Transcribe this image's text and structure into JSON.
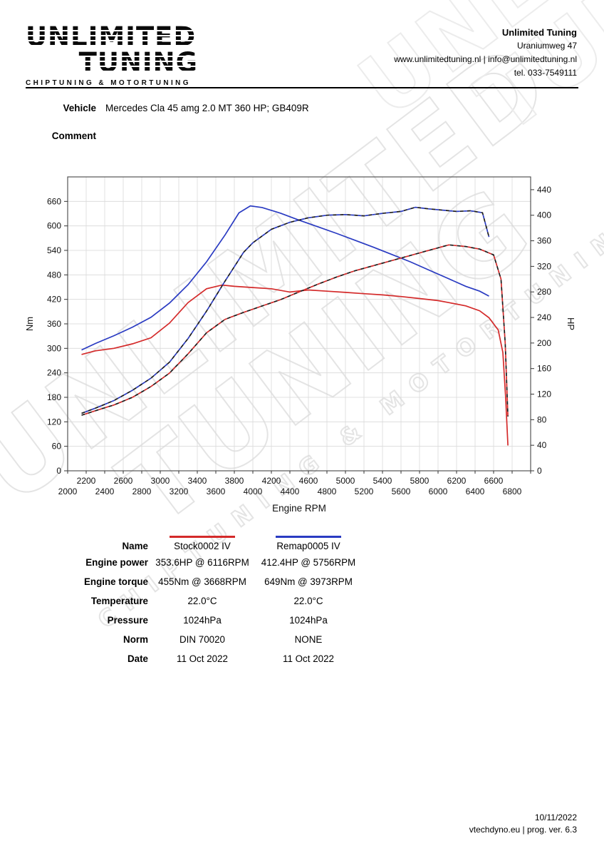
{
  "header": {
    "logo": {
      "title_line1": "UNLIMITED",
      "title_line2": "TUNING",
      "subtitle": "CHIPTUNING & MOTORTUNING"
    },
    "company_name": "Unlimited Tuning",
    "address": "Uraniumweg 47",
    "web_email": "www.unlimitedtuning.nl | info@unlimitedtuning.nl",
    "phone": "tel. 033-7549111"
  },
  "vehicle_section": {
    "vehicle_label": "Vehicle",
    "vehicle_value": "Mercedes Cla 45 amg 2.0 MT 360 HP; GB409R",
    "comment_label": "Comment",
    "comment_value": ""
  },
  "watermark": {
    "line1": "UNLIMITED",
    "line2": "TUNING",
    "line3": "CHIPTUNING & MOTORTUNING"
  },
  "chart_data": {
    "type": "line",
    "title": "",
    "xlabel": "Engine RPM",
    "ylabel_left": "Nm",
    "ylabel_right": "HP",
    "x_range": [
      2000,
      7000
    ],
    "x_grid_step": 200,
    "x_label_step": 400,
    "x_labels_row1_start": 2200,
    "x_labels_row2_start": 2000,
    "y_left_ticks": [
      0,
      60,
      120,
      180,
      240,
      300,
      360,
      420,
      480,
      540,
      600,
      660
    ],
    "y_right_ticks": [
      0,
      40,
      80,
      120,
      160,
      200,
      240,
      280,
      320,
      360,
      400,
      440
    ],
    "y_left_axis_max": 720,
    "y_right_axis_max": 460,
    "grid": true,
    "legend_position": "table-below",
    "series": [
      {
        "name": "Stock0002 IV torque",
        "unit": "Nm",
        "axis": "left",
        "style": "solid",
        "color": "#d42a2a",
        "x": [
          2150,
          2300,
          2500,
          2700,
          2900,
          3100,
          3300,
          3500,
          3668,
          3800,
          4000,
          4200,
          4400,
          4600,
          4800,
          5000,
          5200,
          5400,
          5600,
          5800,
          6000,
          6116,
          6300,
          6450,
          6550,
          6650,
          6700,
          6730,
          6755
        ],
        "y": [
          285,
          294,
          300,
          311,
          326,
          362,
          412,
          446,
          455,
          452,
          449,
          446,
          438,
          443,
          440,
          437,
          434,
          431,
          427,
          422,
          417,
          412,
          404,
          392,
          375,
          345,
          290,
          180,
          62
        ]
      },
      {
        "name": "Remap0005 IV torque",
        "unit": "Nm",
        "axis": "left",
        "style": "solid",
        "color": "#2a3bc2",
        "x": [
          2150,
          2300,
          2500,
          2700,
          2900,
          3100,
          3300,
          3500,
          3700,
          3850,
          3973,
          4100,
          4300,
          4500,
          4700,
          4900,
          5100,
          5300,
          5500,
          5700,
          5900,
          6100,
          6300,
          6450,
          6550
        ],
        "y": [
          296,
          312,
          331,
          352,
          376,
          411,
          456,
          512,
          578,
          632,
          649,
          645,
          631,
          614,
          598,
          582,
          565,
          548,
          530,
          512,
          492,
          472,
          452,
          440,
          428
        ]
      },
      {
        "name": "Stock0002 IV power",
        "unit": "HP",
        "axis": "right",
        "style": "dashed",
        "color": "#d42a2a",
        "dash_alt_color": "#1a1a1a",
        "x": [
          2150,
          2300,
          2500,
          2700,
          2900,
          3100,
          3300,
          3500,
          3700,
          3900,
          4100,
          4300,
          4500,
          4700,
          4900,
          5100,
          5300,
          5500,
          5700,
          5900,
          6116,
          6300,
          6450,
          6600,
          6680,
          6725,
          6755
        ],
        "y": [
          87,
          94,
          103,
          115,
          132,
          153,
          183,
          216,
          237,
          248,
          258,
          268,
          280,
          292,
          303,
          313,
          321,
          329,
          337,
          345,
          353.6,
          351,
          347,
          338,
          300,
          200,
          85
        ]
      },
      {
        "name": "Remap0005 IV power",
        "unit": "HP",
        "axis": "right",
        "style": "dashed",
        "color": "#2a3bc2",
        "dash_alt_color": "#1a1a1a",
        "x": [
          2150,
          2300,
          2500,
          2700,
          2900,
          3100,
          3300,
          3500,
          3700,
          3900,
          4000,
          4200,
          4400,
          4600,
          4800,
          5000,
          5200,
          5400,
          5600,
          5756,
          5900,
          6050,
          6200,
          6350,
          6480,
          6550
        ],
        "y": [
          90,
          98,
          110,
          126,
          145,
          170,
          207,
          250,
          297,
          342,
          357,
          378,
          389,
          396,
          400,
          401,
          399,
          403,
          406,
          412.4,
          410,
          408,
          406,
          407,
          404,
          366
        ]
      }
    ]
  },
  "results": {
    "legend_colors": {
      "stock": "#d42a2a",
      "remap": "#2a3bc2"
    },
    "rows": [
      {
        "label": "Name",
        "col1": "Stock0002 IV",
        "col2": "Remap0005 IV"
      },
      {
        "label": "Engine power",
        "col1": "353.6HP @ 6116RPM",
        "col2": "412.4HP @ 5756RPM"
      },
      {
        "label": "Engine torque",
        "col1": "455Nm @ 3668RPM",
        "col2": "649Nm @ 3973RPM"
      },
      {
        "label": "Temperature",
        "col1": "22.0°C",
        "col2": "22.0°C"
      },
      {
        "label": "Pressure",
        "col1": "1024hPa",
        "col2": "1024hPa"
      },
      {
        "label": "Norm",
        "col1": "DIN 70020",
        "col2": "NONE"
      },
      {
        "label": "Date",
        "col1": "11 Oct 2022",
        "col2": "11 Oct 2022"
      }
    ]
  },
  "footer": {
    "date": "10/11/2022",
    "program": "vtechdyno.eu | prog. ver. 6.3"
  }
}
